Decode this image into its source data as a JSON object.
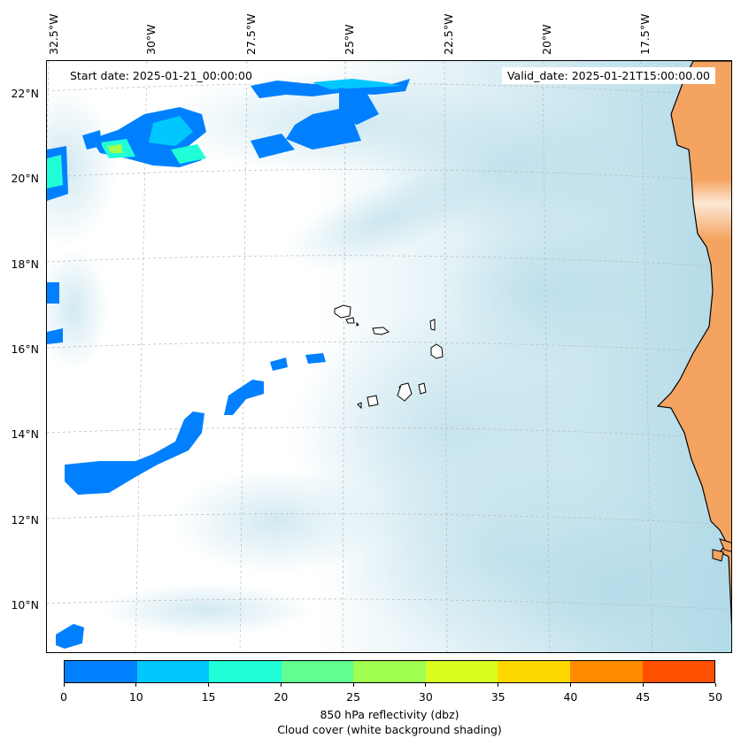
{
  "map": {
    "start_date": "Start date: 2025-01-21_00:00:00",
    "valid_date": "Valid_date: 2025-01-21T15:00:00.00",
    "lon_labels": [
      "32.5°W",
      "30°W",
      "27.5°W",
      "25°W",
      "22.5°W",
      "20°W",
      "17.5°W"
    ],
    "lat_labels": [
      "22°N",
      "20°N",
      "18°N",
      "16°N",
      "14°N",
      "12°N",
      "10°N"
    ],
    "extent": {
      "lon_min": -33.0,
      "lon_max": -16.5,
      "lat_min": 8.9,
      "lat_max": 22.8
    },
    "projection": "lambert-conformal",
    "gridlines": "dashed",
    "colors": {
      "land": "#f4a460",
      "coast": "#000000",
      "cloud_shading": "#add8e6",
      "ocean_background": "#ffffff"
    }
  },
  "colorbar": {
    "title_line1": "850 hPa reflectivity (dbz)",
    "title_line2": "Cloud cover (white background shading)",
    "tick_labels": [
      "0",
      "10",
      "15",
      "20",
      "25",
      "30",
      "35",
      "40",
      "45",
      "50"
    ],
    "colors": [
      "#0080ff",
      "#00c8ff",
      "#20ffd8",
      "#60ff90",
      "#a0ff50",
      "#d8ff20",
      "#ffd800",
      "#ff8c00",
      "#ff5000"
    ]
  }
}
